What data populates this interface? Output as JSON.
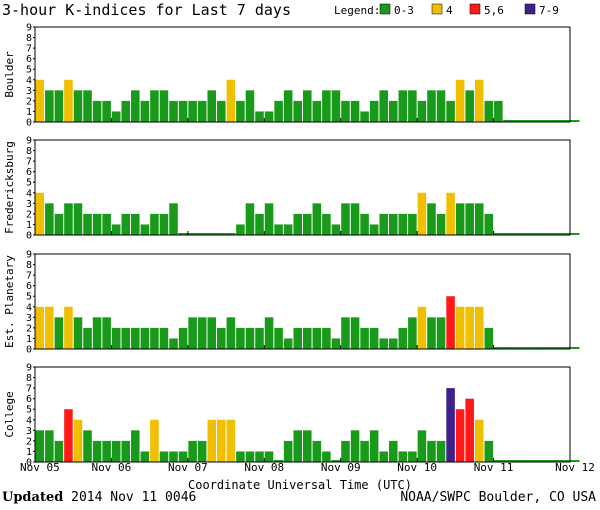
{
  "title": "3-hour K-indices for Last 7 days",
  "legend": {
    "label": "Legend:",
    "items": [
      {
        "label": "0-3",
        "color": "#1a9a1a"
      },
      {
        "label": "4",
        "color": "#f0c000"
      },
      {
        "label": "5,6",
        "color": "#ff1a1a"
      },
      {
        "label": "7-9",
        "color": "#40208a"
      }
    ]
  },
  "footer": {
    "updated_label": "Updated",
    "updated_value": "2014 Nov 11 0046",
    "credit": "NOAA/SWPC Boulder, CO USA"
  },
  "chart_data": {
    "type": "bar",
    "xlabel": "Coordinate Universal Time (UTC)",
    "x_ticks": [
      "Nov 05",
      "Nov 06",
      "Nov 07",
      "Nov 08",
      "Nov 09",
      "Nov 10",
      "Nov 11",
      "Nov 12"
    ],
    "ylim": [
      0,
      9
    ],
    "y_ticks": [
      0,
      1,
      2,
      3,
      4,
      5,
      6,
      7,
      8,
      9
    ],
    "panels": [
      {
        "name": "Boulder",
        "values": [
          4,
          3,
          3,
          4,
          3,
          3,
          2,
          2,
          1,
          2,
          3,
          2,
          3,
          3,
          2,
          2,
          2,
          2,
          3,
          2,
          4,
          2,
          3,
          1,
          1,
          2,
          3,
          2,
          3,
          2,
          3,
          3,
          2,
          2,
          1,
          2,
          3,
          2,
          3,
          3,
          2,
          3,
          3,
          2,
          4,
          3,
          4,
          2,
          2,
          0,
          0,
          0,
          0,
          0,
          0,
          0,
          0
        ]
      },
      {
        "name": "Fredericksburg",
        "values": [
          4,
          3,
          2,
          3,
          3,
          2,
          2,
          2,
          1,
          2,
          2,
          1,
          2,
          2,
          3,
          0,
          0,
          0,
          0,
          0,
          0,
          1,
          3,
          2,
          3,
          1,
          1,
          2,
          2,
          3,
          2,
          1,
          3,
          3,
          2,
          1,
          2,
          2,
          2,
          2,
          4,
          3,
          2,
          4,
          3,
          3,
          3,
          2,
          0,
          0,
          0,
          0,
          0,
          0,
          0,
          0,
          0
        ]
      },
      {
        "name": "Est. Planetary",
        "values": [
          4,
          4,
          3,
          4,
          3,
          2,
          3,
          3,
          2,
          2,
          2,
          2,
          2,
          2,
          1,
          2,
          3,
          3,
          3,
          2,
          3,
          2,
          2,
          2,
          3,
          2,
          1,
          2,
          2,
          2,
          2,
          1,
          3,
          3,
          2,
          2,
          1,
          1,
          2,
          3,
          4,
          3,
          3,
          5,
          4,
          4,
          4,
          2,
          0,
          0,
          0,
          0,
          0,
          0,
          0,
          0,
          0
        ]
      },
      {
        "name": "College",
        "values": [
          3,
          3,
          2,
          5,
          4,
          3,
          2,
          2,
          2,
          2,
          3,
          1,
          4,
          1,
          1,
          1,
          2,
          2,
          4,
          4,
          4,
          1,
          1,
          1,
          1,
          0,
          2,
          3,
          3,
          2,
          1,
          0,
          2,
          3,
          2,
          3,
          1,
          2,
          1,
          1,
          3,
          2,
          2,
          7,
          5,
          6,
          4,
          2,
          0,
          0,
          0,
          0,
          0,
          0,
          0,
          0,
          0
        ]
      }
    ]
  }
}
